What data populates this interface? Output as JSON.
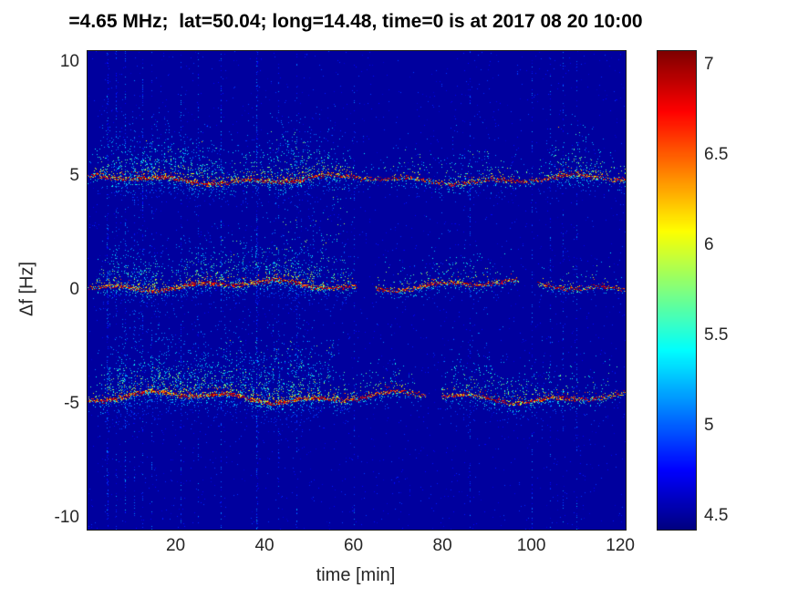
{
  "colors": {
    "figure_bg": "#ffffff",
    "axis_text": "#262626",
    "title_text": "#000000"
  },
  "chart_data": {
    "type": "heatmap",
    "title": "=4.65 MHz;  lat=50.04; long=14.48, time=0 is at 2017 08 20 10:00",
    "xlabel": "time [min]",
    "ylabel": "Δf [Hz]",
    "xlim": [
      0,
      121
    ],
    "ylim": [
      -10.5,
      10.5
    ],
    "xticks": [
      20,
      40,
      60,
      80,
      100,
      120
    ],
    "yticks": [
      10,
      5,
      0,
      -5,
      -10
    ],
    "colorbar": {
      "colormap": "jet",
      "range": [
        4.43,
        7.08
      ],
      "ticks": [
        4.5,
        5,
        5.5,
        6,
        6.5,
        7
      ]
    },
    "background_level": 4.5,
    "description": "Doppler-shift spectrogram with three horizontal spectral traces near +5, 0 and -5 Hz; strongest broad speckled activity between ~5 and ~60 min, thinner intermittent traces afterwards; faint vertical interference streaks.",
    "bands": [
      {
        "name": "upper-trace",
        "center_hz": 4.85,
        "wander_hz": 0.22,
        "spread_up_hz": 2.0,
        "spread_down_hz": 0.9,
        "gaps": [],
        "activity": [
          [
            0,
            0.25
          ],
          [
            3,
            0.7
          ],
          [
            8,
            0.85
          ],
          [
            14,
            0.9
          ],
          [
            20,
            0.8
          ],
          [
            27,
            0.85
          ],
          [
            33,
            0.6
          ],
          [
            40,
            0.75
          ],
          [
            47,
            0.9
          ],
          [
            55,
            0.75
          ],
          [
            60,
            0.4
          ],
          [
            66,
            0.35
          ],
          [
            72,
            0.5
          ],
          [
            78,
            0.45
          ],
          [
            85,
            0.55
          ],
          [
            92,
            0.45
          ],
          [
            100,
            0.4
          ],
          [
            106,
            0.6
          ],
          [
            112,
            0.65
          ],
          [
            118,
            0.45
          ],
          [
            121,
            0.45
          ]
        ]
      },
      {
        "name": "middle-trace",
        "center_hz": 0.2,
        "wander_hz": 0.25,
        "spread_up_hz": 2.2,
        "spread_down_hz": 0.8,
        "gaps": [
          [
            60.5,
            64.5
          ],
          [
            97,
            101
          ]
        ],
        "activity": [
          [
            0,
            0.3
          ],
          [
            5,
            0.75
          ],
          [
            12,
            0.8
          ],
          [
            20,
            0.7
          ],
          [
            28,
            0.75
          ],
          [
            35,
            0.8
          ],
          [
            42,
            0.85
          ],
          [
            50,
            0.9
          ],
          [
            57,
            0.7
          ],
          [
            62,
            0.3
          ],
          [
            68,
            0.45
          ],
          [
            75,
            0.5
          ],
          [
            82,
            0.55
          ],
          [
            88,
            0.5
          ],
          [
            95,
            0.4
          ],
          [
            100,
            0.3
          ],
          [
            105,
            0.45
          ],
          [
            110,
            0.4
          ],
          [
            116,
            0.35
          ],
          [
            121,
            0.35
          ]
        ]
      },
      {
        "name": "lower-trace",
        "center_hz": -4.7,
        "wander_hz": 0.28,
        "spread_up_hz": 2.4,
        "spread_down_hz": 0.9,
        "gaps": [
          [
            76,
            79.5
          ]
        ],
        "activity": [
          [
            0,
            0.3
          ],
          [
            4,
            0.85
          ],
          [
            10,
            1.0
          ],
          [
            18,
            0.95
          ],
          [
            25,
            0.9
          ],
          [
            32,
            0.85
          ],
          [
            38,
            0.9
          ],
          [
            45,
            1.0
          ],
          [
            52,
            0.9
          ],
          [
            58,
            0.6
          ],
          [
            63,
            0.5
          ],
          [
            68,
            0.55
          ],
          [
            75,
            0.35
          ],
          [
            80,
            0.55
          ],
          [
            86,
            0.7
          ],
          [
            93,
            0.65
          ],
          [
            100,
            0.6
          ],
          [
            107,
            0.6
          ],
          [
            113,
            0.5
          ],
          [
            118,
            0.4
          ],
          [
            121,
            0.35
          ]
        ]
      }
    ],
    "patches": [
      {
        "t0": 8,
        "t1": 30,
        "hz0": 5.1,
        "hz1": 6.6,
        "density": 0.4
      },
      {
        "t0": 40,
        "t1": 50,
        "hz0": 5.2,
        "hz1": 7.0,
        "density": 0.35
      },
      {
        "t0": 53,
        "t1": 60,
        "hz0": 3.4,
        "hz1": 4.9,
        "density": 0.5
      },
      {
        "t0": 70,
        "t1": 76,
        "hz0": 5.1,
        "hz1": 6.3,
        "density": 0.25
      },
      {
        "t0": 84,
        "t1": 92,
        "hz0": 5.1,
        "hz1": 6.2,
        "density": 0.25
      },
      {
        "t0": 103,
        "t1": 113,
        "hz0": 5.2,
        "hz1": 7.3,
        "density": 0.3
      },
      {
        "t0": 44,
        "t1": 58,
        "hz0": 0.5,
        "hz1": 3.2,
        "density": 0.5
      },
      {
        "t0": 28,
        "t1": 44,
        "hz0": 0.4,
        "hz1": 2.2,
        "density": 0.35
      },
      {
        "t0": 5,
        "t1": 25,
        "hz0": -4.5,
        "hz1": -3.4,
        "density": 0.45
      },
      {
        "t0": 30,
        "t1": 56,
        "hz0": -4.4,
        "hz1": -2.2,
        "density": 0.5
      }
    ],
    "vertical_streaks": [
      [
        4.5,
        0.5
      ],
      [
        6.5,
        0.35
      ],
      [
        8.5,
        0.45
      ],
      [
        10.5,
        0.3
      ],
      [
        12.5,
        0.4
      ],
      [
        14.5,
        0.25
      ],
      [
        21,
        0.35
      ],
      [
        25,
        0.25
      ],
      [
        30,
        0.45
      ],
      [
        38,
        0.6
      ],
      [
        43,
        0.25
      ],
      [
        47,
        0.3
      ],
      [
        60,
        0.25
      ],
      [
        86,
        0.3
      ],
      [
        100,
        0.3
      ],
      [
        104,
        0.25
      ],
      [
        107,
        0.35
      ],
      [
        110,
        0.3
      ]
    ]
  }
}
